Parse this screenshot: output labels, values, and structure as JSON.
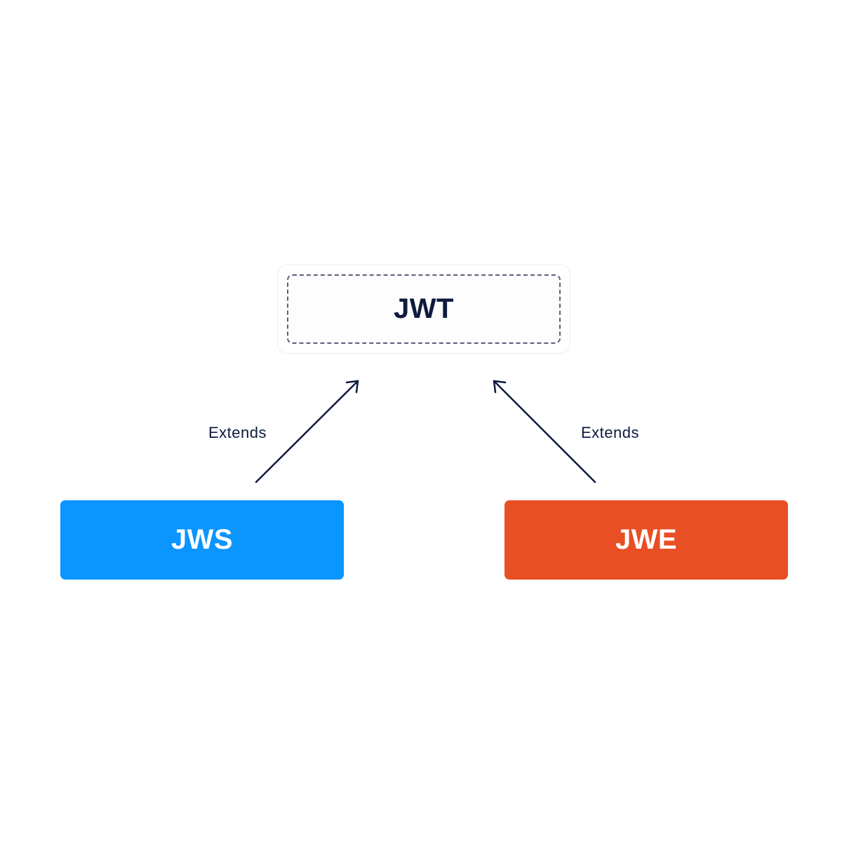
{
  "nodes": {
    "jwt": {
      "label": "JWT"
    },
    "jws": {
      "label": "JWS",
      "color": "#0a95ff"
    },
    "jwe": {
      "label": "JWE",
      "color": "#e84f24"
    }
  },
  "edges": [
    {
      "from": "JWS",
      "to": "JWT",
      "label": "Extends"
    },
    {
      "from": "JWE",
      "to": "JWT",
      "label": "Extends"
    }
  ],
  "colors": {
    "text_dark": "#0f1a3e",
    "dashed_border": "#5a6076",
    "arrow": "#0f1a3e"
  }
}
